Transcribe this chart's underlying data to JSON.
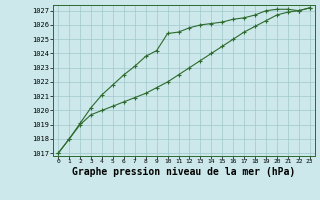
{
  "background_color": "#cce8ea",
  "grid_color": "#a0c8cc",
  "line_color": "#2d6a2d",
  "marker_color": "#2d6a2d",
  "xlabel": "Graphe pression niveau de la mer (hPa)",
  "xlabel_fontsize": 7,
  "ylim": [
    1016.8,
    1027.4
  ],
  "xlim": [
    -0.5,
    23.5
  ],
  "yticks": [
    1017,
    1018,
    1019,
    1020,
    1021,
    1022,
    1023,
    1024,
    1025,
    1026,
    1027
  ],
  "xticks": [
    0,
    1,
    2,
    3,
    4,
    5,
    6,
    7,
    8,
    9,
    10,
    11,
    12,
    13,
    14,
    15,
    16,
    17,
    18,
    19,
    20,
    21,
    22,
    23
  ],
  "series1_x": [
    0,
    1,
    2,
    3,
    4,
    5,
    6,
    7,
    8,
    9,
    10,
    11,
    12,
    13,
    14,
    15,
    16,
    17,
    18,
    19,
    20,
    21,
    22,
    23
  ],
  "series1_y": [
    1017.0,
    1018.0,
    1019.1,
    1020.2,
    1021.1,
    1021.8,
    1022.5,
    1023.1,
    1023.8,
    1024.2,
    1025.4,
    1025.5,
    1025.8,
    1026.0,
    1026.1,
    1026.2,
    1026.4,
    1026.5,
    1026.7,
    1027.0,
    1027.1,
    1027.1,
    1027.0,
    1027.2
  ],
  "series2_x": [
    0,
    1,
    2,
    3,
    4,
    5,
    6,
    7,
    8,
    9,
    10,
    11,
    12,
    13,
    14,
    15,
    16,
    17,
    18,
    19,
    20,
    21,
    22,
    23
  ],
  "series2_y": [
    1017.0,
    1018.0,
    1019.0,
    1019.7,
    1020.0,
    1020.3,
    1020.6,
    1020.9,
    1021.2,
    1021.6,
    1022.0,
    1022.5,
    1023.0,
    1023.5,
    1024.0,
    1024.5,
    1025.0,
    1025.5,
    1025.9,
    1026.3,
    1026.7,
    1026.9,
    1027.0,
    1027.2
  ]
}
